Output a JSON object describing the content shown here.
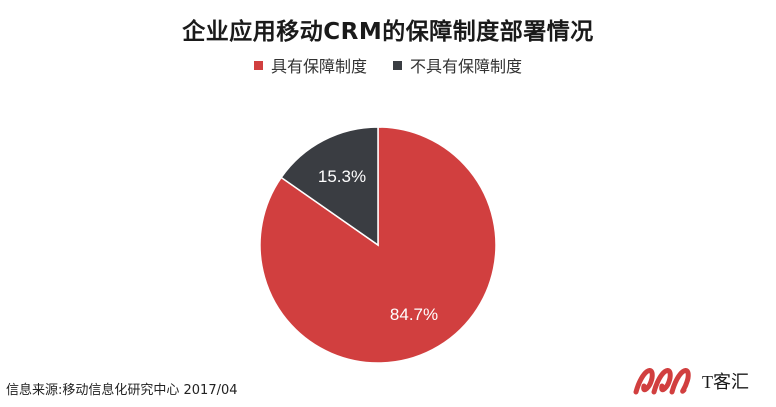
{
  "chart_data": {
    "type": "pie",
    "title": "企业应用移动CRM的保障制度部署情况",
    "slices": [
      {
        "name": "具有保障制度",
        "value": 84.7,
        "label": "84.7%",
        "color": "#d13f3f"
      },
      {
        "name": "不具有保障制度",
        "value": 15.3,
        "label": "15.3%",
        "color": "#3a3d42"
      }
    ],
    "legend_position": "top"
  },
  "source": "信息来源:移动信息化研究中心 2017/04",
  "logo": {
    "text": "T客汇",
    "color": "#d13f3f"
  }
}
